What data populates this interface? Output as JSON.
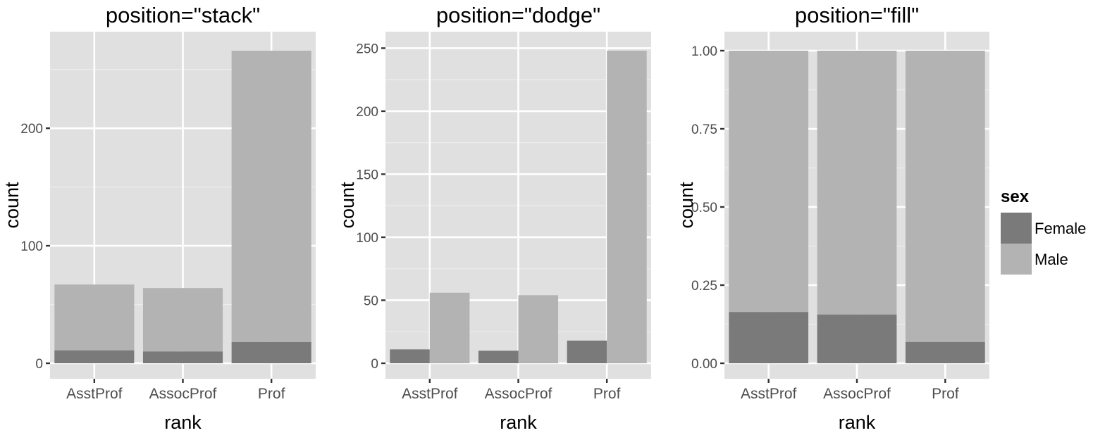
{
  "colors": {
    "panel_bg": "#e0e0e0",
    "grid_major": "#ffffff",
    "grid_minor": "#ececec",
    "tick": "#333333",
    "female": "#7a7a7a",
    "male": "#b3b3b3"
  },
  "legend": {
    "title": "sex",
    "entries": [
      {
        "key": "female",
        "label": "Female"
      },
      {
        "key": "male",
        "label": "Male"
      }
    ]
  },
  "chart_data": [
    {
      "type": "bar",
      "position": "stack",
      "title": "position=\"stack\"",
      "xlabel": "rank",
      "ylabel": "count",
      "categories": [
        "AsstProf",
        "AssocProf",
        "Prof"
      ],
      "series": [
        {
          "name": "Female",
          "values": [
            11,
            10,
            18
          ]
        },
        {
          "name": "Male",
          "values": [
            56,
            54,
            248
          ]
        }
      ],
      "ylim": [
        0,
        266
      ],
      "yticks": [
        {
          "value": 0,
          "label": "0"
        },
        {
          "value": 100,
          "label": "100"
        },
        {
          "value": 200,
          "label": "200"
        }
      ],
      "yminor": [
        50,
        150,
        250
      ]
    },
    {
      "type": "bar",
      "position": "dodge",
      "title": "position=\"dodge\"",
      "xlabel": "rank",
      "ylabel": "count",
      "categories": [
        "AsstProf",
        "AssocProf",
        "Prof"
      ],
      "series": [
        {
          "name": "Female",
          "values": [
            11,
            10,
            18
          ]
        },
        {
          "name": "Male",
          "values": [
            56,
            54,
            248
          ]
        }
      ],
      "ylim": [
        0,
        248
      ],
      "yticks": [
        {
          "value": 0,
          "label": "0"
        },
        {
          "value": 50,
          "label": "50"
        },
        {
          "value": 100,
          "label": "100"
        },
        {
          "value": 150,
          "label": "150"
        },
        {
          "value": 200,
          "label": "200"
        },
        {
          "value": 250,
          "label": "250"
        }
      ],
      "yminor": [
        25,
        75,
        125,
        175,
        225
      ]
    },
    {
      "type": "bar",
      "position": "fill",
      "title": "position=\"fill\"",
      "xlabel": "rank",
      "ylabel": "count",
      "categories": [
        "AsstProf",
        "AssocProf",
        "Prof"
      ],
      "series": [
        {
          "name": "Female",
          "values": [
            0.164,
            0.156,
            0.068
          ]
        },
        {
          "name": "Male",
          "values": [
            0.836,
            0.844,
            0.932
          ]
        }
      ],
      "ylim": [
        0,
        1
      ],
      "yticks": [
        {
          "value": 0,
          "label": "0.00"
        },
        {
          "value": 0.25,
          "label": "0.25"
        },
        {
          "value": 0.5,
          "label": "0.50"
        },
        {
          "value": 0.75,
          "label": "0.75"
        },
        {
          "value": 1,
          "label": "1.00"
        }
      ],
      "yminor": [
        0.125,
        0.375,
        0.625,
        0.875
      ]
    }
  ]
}
